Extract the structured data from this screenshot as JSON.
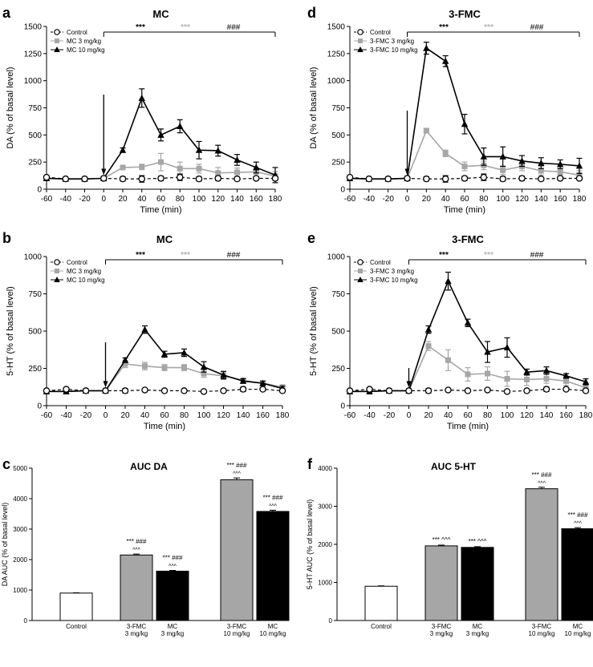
{
  "chart_data": [
    {
      "type": "line",
      "panel_letter": "a",
      "title": "MC",
      "xlabel": "Time (min)",
      "ylabel": "DA (% of basal level)",
      "xlim": [
        -60,
        180
      ],
      "ylim": [
        0,
        1500
      ],
      "xticks": [
        -60,
        -40,
        -20,
        0,
        20,
        40,
        60,
        80,
        100,
        120,
        140,
        160,
        180
      ],
      "yticks": [
        0,
        250,
        500,
        750,
        1000,
        1250,
        1500
      ],
      "x": [
        -60,
        -40,
        -20,
        0,
        20,
        40,
        60,
        80,
        100,
        120,
        140,
        160,
        180
      ],
      "series": [
        {
          "name": "Control",
          "marker": "circle",
          "color": "#000000",
          "dashed": true,
          "values": [
            110,
            95,
            95,
            100,
            95,
            95,
            100,
            110,
            95,
            100,
            95,
            100,
            100
          ],
          "errors": [
            15,
            10,
            10,
            15,
            20,
            30,
            20,
            30,
            20,
            20,
            15,
            15,
            15
          ]
        },
        {
          "name": "MC 3 mg/kg",
          "marker": "square",
          "color": "#a6a6a6",
          "dashed": false,
          "values": [
            100,
            95,
            95,
            100,
            200,
            205,
            250,
            190,
            190,
            150,
            155,
            160,
            120
          ],
          "errors": [
            10,
            10,
            10,
            15,
            20,
            25,
            80,
            60,
            40,
            50,
            40,
            40,
            40
          ]
        },
        {
          "name": "MC 10 mg/kg",
          "marker": "triangle",
          "color": "#000000",
          "dashed": false,
          "values": [
            100,
            95,
            95,
            100,
            360,
            840,
            500,
            580,
            360,
            355,
            270,
            200,
            130
          ],
          "errors": [
            10,
            10,
            10,
            15,
            20,
            85,
            55,
            60,
            80,
            50,
            50,
            50,
            70
          ]
        }
      ],
      "annotations": {
        "sig_dark": "***",
        "sig_light": "***",
        "sig_hash": "###"
      }
    },
    {
      "type": "line",
      "panel_letter": "b",
      "title": "MC",
      "xlabel": "Time (min)",
      "ylabel": "5-HT (% of basal level)",
      "xlim": [
        -60,
        180
      ],
      "ylim": [
        0,
        1000
      ],
      "xticks": [
        -60,
        -40,
        -20,
        0,
        20,
        40,
        60,
        80,
        100,
        120,
        140,
        160,
        180
      ],
      "yticks": [
        0,
        250,
        500,
        750,
        1000
      ],
      "x": [
        -60,
        -40,
        -20,
        0,
        20,
        40,
        60,
        80,
        100,
        120,
        140,
        160,
        180
      ],
      "series": [
        {
          "name": "Control",
          "marker": "circle",
          "color": "#000000",
          "dashed": true,
          "values": [
            100,
            110,
            100,
            100,
            100,
            105,
            100,
            100,
            95,
            100,
            110,
            110,
            100
          ],
          "errors": [
            10,
            10,
            10,
            10,
            15,
            10,
            10,
            10,
            10,
            10,
            15,
            10,
            10
          ]
        },
        {
          "name": "MC 3 mg/kg",
          "marker": "square",
          "color": "#a6a6a6",
          "dashed": false,
          "values": [
            95,
            95,
            100,
            100,
            280,
            265,
            255,
            255,
            215,
            200,
            170,
            150,
            125
          ],
          "errors": [
            10,
            10,
            10,
            10,
            25,
            25,
            20,
            20,
            25,
            25,
            15,
            15,
            15
          ]
        },
        {
          "name": "MC 10 mg/kg",
          "marker": "triangle",
          "color": "#000000",
          "dashed": false,
          "values": [
            95,
            95,
            100,
            100,
            305,
            510,
            345,
            355,
            260,
            205,
            165,
            150,
            115
          ],
          "errors": [
            10,
            10,
            10,
            10,
            15,
            25,
            20,
            25,
            35,
            25,
            15,
            15,
            15
          ]
        }
      ],
      "annotations": {
        "sig_dark": "***",
        "sig_light": "***",
        "sig_hash": "###"
      }
    },
    {
      "type": "bar",
      "panel_letter": "c",
      "title": "AUC DA",
      "xlabel": "",
      "ylabel": "DA AUC (% of basal level)",
      "ylim": [
        0,
        5000
      ],
      "yticks": [
        0,
        1000,
        2000,
        3000,
        4000,
        5000
      ],
      "categories": [
        "Control",
        "3-FMC|3 mg/kg",
        "MC|3 mg/kg",
        "3-FMC|10 mg/kg",
        "MC|10 mg/kg"
      ],
      "values": [
        900,
        2150,
        1620,
        4620,
        3580
      ],
      "errors": [
        10,
        30,
        25,
        60,
        40
      ],
      "colors": [
        "#ffffff",
        "#a6a6a6",
        "#000000",
        "#a6a6a6",
        "#000000"
      ],
      "sig_top": [
        "",
        "*** ###",
        "*** ###",
        "*** ###",
        "*** ###"
      ],
      "sig_bottom": [
        "",
        "^^^",
        "^^^",
        "^^^",
        "^^^"
      ]
    },
    {
      "type": "line",
      "panel_letter": "d",
      "title": "3-FMC",
      "xlabel": "Time (min)",
      "ylabel": "DA (% of basal level)",
      "xlim": [
        -60,
        180
      ],
      "ylim": [
        0,
        1500
      ],
      "xticks": [
        -60,
        -40,
        -20,
        0,
        20,
        40,
        60,
        80,
        100,
        120,
        140,
        160,
        180
      ],
      "yticks": [
        0,
        250,
        500,
        750,
        1000,
        1250,
        1500
      ],
      "x": [
        -60,
        -40,
        -20,
        0,
        20,
        40,
        60,
        80,
        100,
        120,
        140,
        160,
        180
      ],
      "series": [
        {
          "name": "Control",
          "marker": "circle",
          "color": "#000000",
          "dashed": true,
          "values": [
            110,
            95,
            95,
            100,
            95,
            95,
            100,
            110,
            95,
            100,
            95,
            100,
            100
          ],
          "errors": [
            15,
            10,
            10,
            15,
            20,
            30,
            20,
            30,
            20,
            20,
            15,
            15,
            15
          ]
        },
        {
          "name": "3-FMC 3 mg/kg",
          "marker": "square",
          "color": "#a6a6a6",
          "dashed": false,
          "values": [
            100,
            95,
            95,
            100,
            540,
            330,
            210,
            220,
            175,
            210,
            170,
            160,
            130
          ],
          "errors": [
            10,
            10,
            10,
            15,
            20,
            30,
            40,
            40,
            40,
            40,
            40,
            30,
            40
          ]
        },
        {
          "name": "3-FMC 10 mg/kg",
          "marker": "triangle",
          "color": "#000000",
          "dashed": false,
          "values": [
            100,
            95,
            95,
            100,
            1300,
            1180,
            600,
            300,
            300,
            260,
            240,
            230,
            215
          ],
          "errors": [
            10,
            10,
            10,
            15,
            55,
            50,
            90,
            80,
            90,
            50,
            50,
            40,
            70
          ]
        }
      ],
      "annotations": {
        "sig_dark": "***",
        "sig_light": "***",
        "sig_hash": "###"
      }
    },
    {
      "type": "line",
      "panel_letter": "e",
      "title": "3-FMC",
      "xlabel": "Time (min)",
      "ylabel": "5-HT (% of basal level)",
      "xlim": [
        -60,
        180
      ],
      "ylim": [
        0,
        1000
      ],
      "xticks": [
        -60,
        -40,
        -20,
        0,
        20,
        40,
        60,
        80,
        100,
        120,
        140,
        160,
        180
      ],
      "yticks": [
        0,
        250,
        500,
        750,
        1000
      ],
      "x": [
        -60,
        -40,
        -20,
        0,
        20,
        40,
        60,
        80,
        100,
        120,
        140,
        160,
        180
      ],
      "series": [
        {
          "name": "Control",
          "marker": "circle",
          "color": "#000000",
          "dashed": true,
          "values": [
            100,
            110,
            100,
            100,
            100,
            105,
            100,
            105,
            95,
            100,
            110,
            110,
            100
          ],
          "errors": [
            10,
            10,
            10,
            10,
            15,
            10,
            10,
            10,
            10,
            10,
            15,
            10,
            10
          ]
        },
        {
          "name": "3-FMC 3 mg/kg",
          "marker": "square",
          "color": "#a6a6a6",
          "dashed": false,
          "values": [
            95,
            95,
            100,
            100,
            400,
            305,
            210,
            215,
            180,
            175,
            180,
            165,
            120
          ],
          "errors": [
            10,
            10,
            10,
            10,
            30,
            70,
            45,
            45,
            50,
            40,
            30,
            30,
            20
          ]
        },
        {
          "name": "3-FMC 10 mg/kg",
          "marker": "triangle",
          "color": "#000000",
          "dashed": false,
          "values": [
            95,
            95,
            100,
            100,
            510,
            835,
            555,
            360,
            390,
            225,
            235,
            200,
            160
          ],
          "errors": [
            10,
            10,
            10,
            10,
            25,
            60,
            25,
            70,
            65,
            20,
            25,
            15,
            20
          ]
        }
      ],
      "annotations": {
        "sig_dark": "***",
        "sig_light": "***",
        "sig_hash": "###"
      }
    },
    {
      "type": "bar",
      "panel_letter": "f",
      "title": "AUC 5-HT",
      "xlabel": "",
      "ylabel": "5-HT AUC (% of basal level)",
      "ylim": [
        0,
        4000
      ],
      "yticks": [
        0,
        1000,
        2000,
        3000,
        4000
      ],
      "categories": [
        "Control",
        "3-FMC|3 mg/kg",
        "MC|3 mg/kg",
        "3-FMC|10 mg/kg",
        "MC|10 mg/kg"
      ],
      "values": [
        900,
        1960,
        1920,
        3460,
        2410
      ],
      "errors": [
        10,
        20,
        20,
        40,
        30
      ],
      "colors": [
        "#ffffff",
        "#a6a6a6",
        "#000000",
        "#a6a6a6",
        "#000000"
      ],
      "sig_top": [
        "",
        "*** ^^^",
        "*** ^^^",
        "*** ###",
        "*** ###"
      ],
      "sig_bottom": [
        "",
        "",
        "",
        "^^^",
        "^^^"
      ]
    }
  ]
}
